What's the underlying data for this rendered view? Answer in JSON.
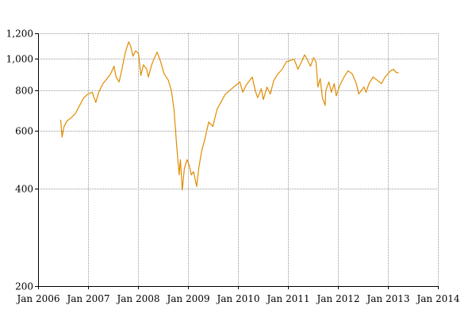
{
  "chart_data": {
    "type": "line",
    "title": "",
    "xlabel": "",
    "ylabel": "",
    "yscale": "log",
    "ylim": [
      200,
      1200
    ],
    "xlim": [
      "2006-01-01",
      "2014-01-01"
    ],
    "grid": true,
    "line_color": "#e08c00",
    "y_ticks": [
      {
        "value": 200,
        "label": "200"
      },
      {
        "value": 400,
        "label": "400"
      },
      {
        "value": 600,
        "label": "600"
      },
      {
        "value": 800,
        "label": "800"
      },
      {
        "value": 1000,
        "label": "1,000"
      },
      {
        "value": 1200,
        "label": "1,200"
      }
    ],
    "x_ticks": [
      {
        "value": "2006-01-01",
        "label": "Jan 2006"
      },
      {
        "value": "2007-01-01",
        "label": "Jan 2007"
      },
      {
        "value": "2008-01-01",
        "label": "Jan 2008"
      },
      {
        "value": "2009-01-01",
        "label": "Jan 2009"
      },
      {
        "value": "2010-01-01",
        "label": "Jan 2010"
      },
      {
        "value": "2011-01-01",
        "label": "Jan 2011"
      },
      {
        "value": "2012-01-01",
        "label": "Jan 2012"
      },
      {
        "value": "2013-01-01",
        "label": "Jan 2013"
      },
      {
        "value": "2014-01-01",
        "label": "Jan 2014"
      }
    ],
    "series": [
      {
        "points": [
          [
            "2006-06-15",
            650
          ],
          [
            "2006-06-25",
            575
          ],
          [
            "2006-07-10",
            620
          ],
          [
            "2006-08-01",
            645
          ],
          [
            "2006-09-01",
            660
          ],
          [
            "2006-10-01",
            680
          ],
          [
            "2006-11-01",
            720
          ],
          [
            "2006-12-01",
            760
          ],
          [
            "2007-01-01",
            780
          ],
          [
            "2007-02-01",
            790
          ],
          [
            "2007-02-27",
            735
          ],
          [
            "2007-03-20",
            790
          ],
          [
            "2007-04-20",
            840
          ],
          [
            "2007-05-20",
            870
          ],
          [
            "2007-06-15",
            900
          ],
          [
            "2007-07-10",
            950
          ],
          [
            "2007-07-25",
            880
          ],
          [
            "2007-08-16",
            850
          ],
          [
            "2007-09-01",
            910
          ],
          [
            "2007-10-01",
            1050
          ],
          [
            "2007-10-25",
            1130
          ],
          [
            "2007-11-10",
            1090
          ],
          [
            "2007-11-25",
            1020
          ],
          [
            "2007-12-15",
            1060
          ],
          [
            "2008-01-05",
            1040
          ],
          [
            "2008-01-22",
            890
          ],
          [
            "2008-02-10",
            960
          ],
          [
            "2008-03-05",
            930
          ],
          [
            "2008-03-17",
            880
          ],
          [
            "2008-04-10",
            960
          ],
          [
            "2008-05-01",
            1010
          ],
          [
            "2008-05-20",
            1050
          ],
          [
            "2008-06-15",
            980
          ],
          [
            "2008-07-10",
            900
          ],
          [
            "2008-08-10",
            860
          ],
          [
            "2008-09-01",
            800
          ],
          [
            "2008-09-20",
            700
          ],
          [
            "2008-10-10",
            540
          ],
          [
            "2008-10-28",
            440
          ],
          [
            "2008-11-06",
            490
          ],
          [
            "2008-11-20",
            395
          ],
          [
            "2008-12-05",
            460
          ],
          [
            "2008-12-25",
            490
          ],
          [
            "2009-01-10",
            470
          ],
          [
            "2009-01-25",
            440
          ],
          [
            "2009-02-10",
            450
          ],
          [
            "2009-03-05",
            405
          ],
          [
            "2009-03-20",
            460
          ],
          [
            "2009-04-10",
            520
          ],
          [
            "2009-05-01",
            560
          ],
          [
            "2009-06-01",
            640
          ],
          [
            "2009-07-01",
            620
          ],
          [
            "2009-08-01",
            700
          ],
          [
            "2009-09-01",
            740
          ],
          [
            "2009-10-01",
            780
          ],
          [
            "2009-11-01",
            800
          ],
          [
            "2009-12-01",
            820
          ],
          [
            "2010-01-15",
            850
          ],
          [
            "2010-02-05",
            790
          ],
          [
            "2010-03-01",
            830
          ],
          [
            "2010-04-15",
            880
          ],
          [
            "2010-05-07",
            800
          ],
          [
            "2010-05-25",
            760
          ],
          [
            "2010-06-20",
            810
          ],
          [
            "2010-07-05",
            750
          ],
          [
            "2010-08-01",
            820
          ],
          [
            "2010-08-25",
            780
          ],
          [
            "2010-09-20",
            860
          ],
          [
            "2010-10-20",
            900
          ],
          [
            "2010-11-20",
            930
          ],
          [
            "2010-12-20",
            980
          ],
          [
            "2011-01-20",
            990
          ],
          [
            "2011-02-15",
            1000
          ],
          [
            "2011-03-15",
            930
          ],
          [
            "2011-04-15",
            990
          ],
          [
            "2011-05-02",
            1030
          ],
          [
            "2011-05-20",
            1000
          ],
          [
            "2011-06-15",
            950
          ],
          [
            "2011-07-07",
            1010
          ],
          [
            "2011-07-25",
            980
          ],
          [
            "2011-08-08",
            820
          ],
          [
            "2011-08-25",
            870
          ],
          [
            "2011-09-10",
            760
          ],
          [
            "2011-09-30",
            720
          ],
          [
            "2011-10-05",
            800
          ],
          [
            "2011-10-27",
            850
          ],
          [
            "2011-11-15",
            790
          ],
          [
            "2011-12-05",
            840
          ],
          [
            "2011-12-20",
            770
          ],
          [
            "2012-01-15",
            830
          ],
          [
            "2012-02-15",
            880
          ],
          [
            "2012-03-15",
            920
          ],
          [
            "2012-04-15",
            900
          ],
          [
            "2012-05-15",
            840
          ],
          [
            "2012-06-01",
            780
          ],
          [
            "2012-06-20",
            800
          ],
          [
            "2012-07-10",
            820
          ],
          [
            "2012-07-25",
            790
          ],
          [
            "2012-08-15",
            840
          ],
          [
            "2012-09-14",
            880
          ],
          [
            "2012-10-15",
            860
          ],
          [
            "2012-11-15",
            840
          ],
          [
            "2012-12-10",
            880
          ],
          [
            "2012-12-31",
            900
          ],
          [
            "2013-01-20",
            920
          ],
          [
            "2013-02-10",
            930
          ],
          [
            "2013-03-01",
            910
          ],
          [
            "2013-03-20",
            905
          ]
        ]
      }
    ]
  }
}
